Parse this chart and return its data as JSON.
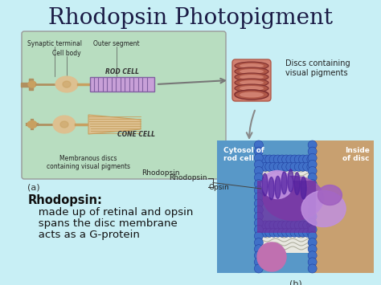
{
  "title": "Rhodopsin Photopigment",
  "title_fontsize": 20,
  "title_color": "#1a1a44",
  "bg_color": "#c8eff5",
  "rhodopsin_label": "Rhodopsin:",
  "rhodopsin_lines": [
    "   made up of retinal and opsin",
    "   spans the disc membrane",
    "   acts as a G-protein"
  ],
  "rhodopsin_label_fontsize": 10.5,
  "rhodopsin_text_fontsize": 9.5,
  "fig_width": 4.74,
  "fig_height": 3.55,
  "dpi": 100,
  "box_a_bg": "#b8ddc0",
  "box_a_edge": "#999999",
  "mem_panel_blue": "#5090c8",
  "mem_panel_tan": "#c8a878",
  "bead_color": "#4070c8",
  "bead_dark": "#2050a0",
  "protein_purple": "#7040a0",
  "protein_pink": "#c080d0",
  "protein_mauve": "#9060b0",
  "disc_color": "#b05848",
  "disc_light": "#d08070",
  "rod_purple": "#c8a0d8",
  "rod_purple_dark": "#8060a0",
  "cell_tan": "#c8a060",
  "cell_tan_light": "#ddc090",
  "synaptic_color": "#b09060"
}
